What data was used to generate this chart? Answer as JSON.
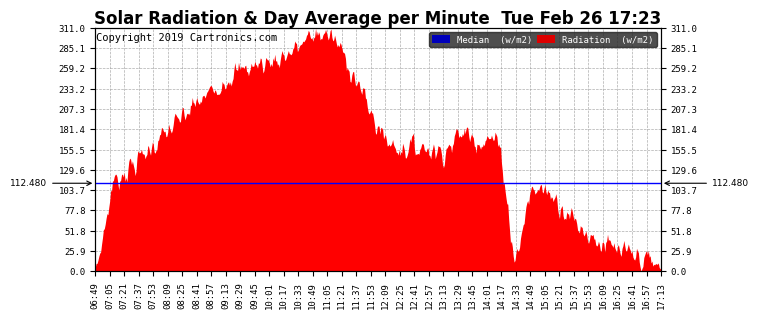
{
  "title": "Solar Radiation & Day Average per Minute  Tue Feb 26 17:23",
  "copyright": "Copyright 2019 Cartronics.com",
  "median_value": 112.48,
  "y_max": 311.0,
  "y_min": 0.0,
  "y_ticks": [
    0.0,
    25.9,
    51.8,
    77.8,
    103.7,
    129.6,
    155.5,
    181.4,
    207.3,
    233.2,
    259.2,
    285.1,
    311.0
  ],
  "x_ticks": [
    "06:49",
    "07:05",
    "07:21",
    "07:37",
    "07:53",
    "08:09",
    "08:25",
    "08:41",
    "08:57",
    "09:13",
    "09:29",
    "09:45",
    "10:01",
    "10:17",
    "10:33",
    "10:49",
    "11:05",
    "11:21",
    "11:37",
    "11:53",
    "12:09",
    "12:25",
    "12:41",
    "12:57",
    "13:13",
    "13:29",
    "13:45",
    "14:01",
    "14:17",
    "14:33",
    "14:49",
    "15:05",
    "15:21",
    "15:37",
    "15:53",
    "16:09",
    "16:25",
    "16:41",
    "16:57",
    "17:13"
  ],
  "legend_median_label": "Median  (w/m2)",
  "legend_radiation_label": "Radiation  (w/m2)",
  "median_bg_color": "#0000bb",
  "radiation_bg_color": "#dd0000",
  "fill_color": "#ff0000",
  "line_color": "#0000ff",
  "background_color": "#ffffff",
  "grid_color": "#999999",
  "title_fontsize": 12,
  "copyright_fontsize": 7.5,
  "tick_fontsize": 6.5
}
